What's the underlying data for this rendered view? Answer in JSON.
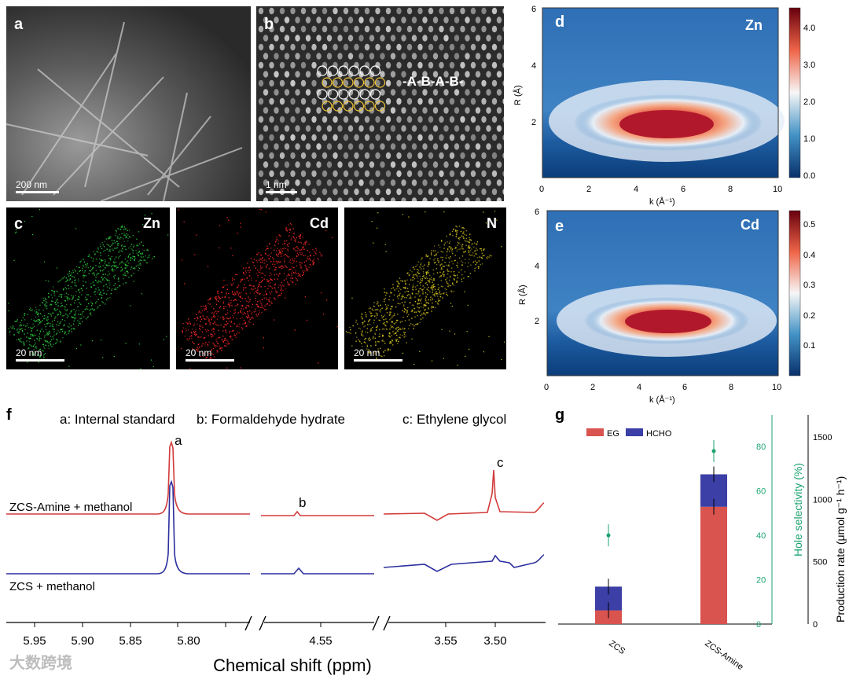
{
  "panels": {
    "a": {
      "label": "a",
      "scale": "200 nm"
    },
    "b": {
      "label": "b",
      "scale": "1 nm",
      "stacking": "-A-B-A-B-"
    },
    "c1": {
      "label": "c",
      "element": "Zn",
      "scale": "20 nm",
      "color": "#2ecc40"
    },
    "c2": {
      "element": "Cd",
      "scale": "20 nm",
      "color": "#ff2a2a"
    },
    "c3": {
      "element": "N",
      "scale": "20 nm",
      "color": "#d6c41e"
    },
    "d": {
      "label": "d",
      "element": "Zn",
      "ylabel": "R (Å)",
      "xlabel": "k (Å⁻¹)",
      "xticks": [
        "0",
        "2",
        "4",
        "6",
        "8",
        "10"
      ],
      "yticks": [
        "2",
        "4",
        "6"
      ],
      "cbar": [
        "0.0",
        "1.0",
        "2.0",
        "3.0",
        "4.0"
      ]
    },
    "e": {
      "label": "e",
      "element": "Cd",
      "ylabel": "R (Å)",
      "xlabel": "k (Å⁻¹)",
      "xticks": [
        "0",
        "2",
        "4",
        "6",
        "8",
        "10"
      ],
      "yticks": [
        "2",
        "4",
        "6"
      ],
      "cbar": [
        "0.1",
        "0.2",
        "0.3",
        "0.4",
        "0.5"
      ]
    },
    "f": {
      "label": "f",
      "legend_a": "a: Internal standard",
      "legend_b": "b: Formaldehyde hydrate",
      "legend_c": "c: Ethylene glycol",
      "trace1": "ZCS-Amine + methanol",
      "trace2": "ZCS + methanol",
      "peak_a": "a",
      "peak_b": "b",
      "peak_c": "c",
      "xticks": [
        "5.95",
        "5.90",
        "5.85",
        "5.80",
        "4.55",
        "3.55",
        "3.50"
      ],
      "xlabel": "Chemical shift (ppm)"
    },
    "g": {
      "label": "g",
      "legend_eg": "EG",
      "legend_hcho": "HCHO",
      "categories": [
        "ZCS",
        "ZCS-Amine"
      ],
      "left_ticks": [
        "0",
        "20",
        "40",
        "60",
        "80"
      ],
      "right_ticks": [
        "0",
        "500",
        "1000",
        "1500"
      ],
      "left_label": "Hole selectivity (%)",
      "right_label": "Production rate (μmol g⁻¹ h⁻¹)"
    }
  },
  "chart_data": {
    "type": "bar",
    "title": "",
    "categories": [
      "ZCS",
      "ZCS-Amine"
    ],
    "series": [
      {
        "name": "EG",
        "values": [
          110,
          940
        ],
        "axis": "right"
      },
      {
        "name": "HCHO",
        "values": [
          190,
          260
        ],
        "axis": "right"
      }
    ],
    "selectivity": {
      "name": "Hole selectivity (%)",
      "values": [
        40,
        78
      ]
    },
    "ylim_right": [
      0,
      1600
    ],
    "ylim_left": [
      0,
      90
    ],
    "colors": {
      "EG": "#d9534f",
      "HCHO": "#3b3fa6",
      "selectivity": "#1aa36f"
    }
  },
  "watermark": "大数跨境"
}
